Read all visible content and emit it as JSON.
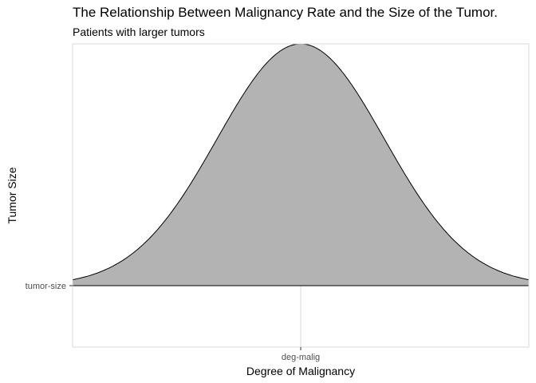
{
  "chart_data": {
    "type": "area",
    "title": "The Relationship Between Malignancy Rate and the Size of the Tumor.",
    "subtitle": "Patients with larger tumors",
    "xlabel": "Degree of Malignancy",
    "ylabel": "Tumor Size",
    "x_ticks": [
      "deg-malig"
    ],
    "y_ticks": [
      "tumor-size"
    ],
    "shape": "bell-curve",
    "peak_position": "center",
    "grid": true,
    "colors": {
      "fill": "#b3b3b3",
      "stroke": "#000000",
      "grid": "#d9d9d9",
      "panel_border": "#d9d9d9"
    }
  }
}
